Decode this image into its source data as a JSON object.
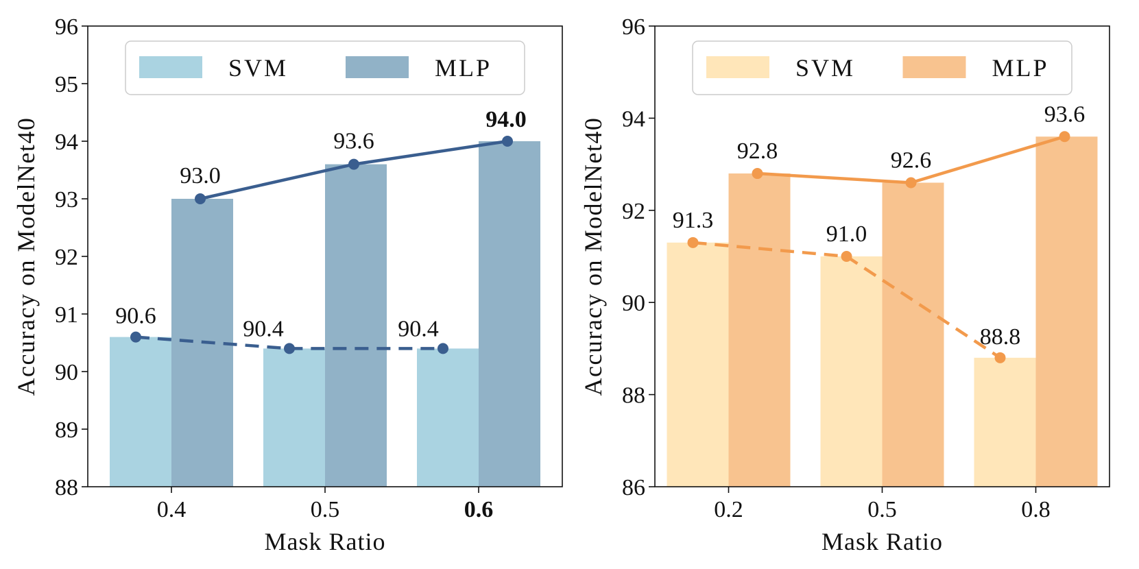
{
  "chart_data": [
    {
      "type": "bar",
      "categories": [
        "0.4",
        "0.5",
        "0.6"
      ],
      "bold_category": "0.6",
      "series": [
        {
          "name": "SVM",
          "values": [
            90.6,
            90.4,
            90.4
          ],
          "bar_color": "#aad3e1",
          "line_color": "#3a5e8f",
          "line_style": "dashed"
        },
        {
          "name": "MLP",
          "values": [
            93.0,
            93.6,
            94.0
          ],
          "bar_color": "#91b2c7",
          "line_color": "#3a5e8f",
          "line_style": "solid"
        }
      ],
      "data_labels": [
        {
          "series": 0,
          "index": 0,
          "text": "90.6",
          "bold": false
        },
        {
          "series": 0,
          "index": 1,
          "text": "90.4",
          "bold": false
        },
        {
          "series": 0,
          "index": 2,
          "text": "90.4",
          "bold": false
        },
        {
          "series": 1,
          "index": 0,
          "text": "93.0",
          "bold": false
        },
        {
          "series": 1,
          "index": 1,
          "text": "93.6",
          "bold": false
        },
        {
          "series": 1,
          "index": 2,
          "text": "94.0",
          "bold": true
        }
      ],
      "xlabel": "Mask Ratio",
      "ylabel": "Accuracy on ModelNet40",
      "ylim": [
        88,
        96
      ],
      "yticks": [
        "88",
        "89",
        "90",
        "91",
        "92",
        "93",
        "94",
        "95",
        "96"
      ],
      "legend": {
        "position": "top-center",
        "entries": [
          "SVM",
          "MLP"
        ]
      },
      "grid": false
    },
    {
      "type": "bar",
      "categories": [
        "0.2",
        "0.5",
        "0.8"
      ],
      "bold_category": "",
      "series": [
        {
          "name": "SVM",
          "values": [
            91.3,
            91.0,
            88.8
          ],
          "bar_color": "#ffe6b9",
          "line_color": "#f29a4c",
          "line_style": "dashed"
        },
        {
          "name": "MLP",
          "values": [
            92.8,
            92.6,
            93.6
          ],
          "bar_color": "#f8c38f",
          "line_color": "#f29a4c",
          "line_style": "solid"
        }
      ],
      "data_labels": [
        {
          "series": 0,
          "index": 0,
          "text": "91.3",
          "bold": false
        },
        {
          "series": 0,
          "index": 1,
          "text": "91.0",
          "bold": false
        },
        {
          "series": 0,
          "index": 2,
          "text": "88.8",
          "bold": false
        },
        {
          "series": 1,
          "index": 0,
          "text": "92.8",
          "bold": false
        },
        {
          "series": 1,
          "index": 1,
          "text": "92.6",
          "bold": false
        },
        {
          "series": 1,
          "index": 2,
          "text": "93.6",
          "bold": false
        }
      ],
      "xlabel": "Mask Ratio",
      "ylabel": "Accuracy on ModelNet40",
      "ylim": [
        86,
        96
      ],
      "yticks": [
        "86",
        "88",
        "90",
        "92",
        "94",
        "96"
      ],
      "legend": {
        "position": "top-center",
        "entries": [
          "SVM",
          "MLP"
        ]
      },
      "grid": false
    }
  ]
}
